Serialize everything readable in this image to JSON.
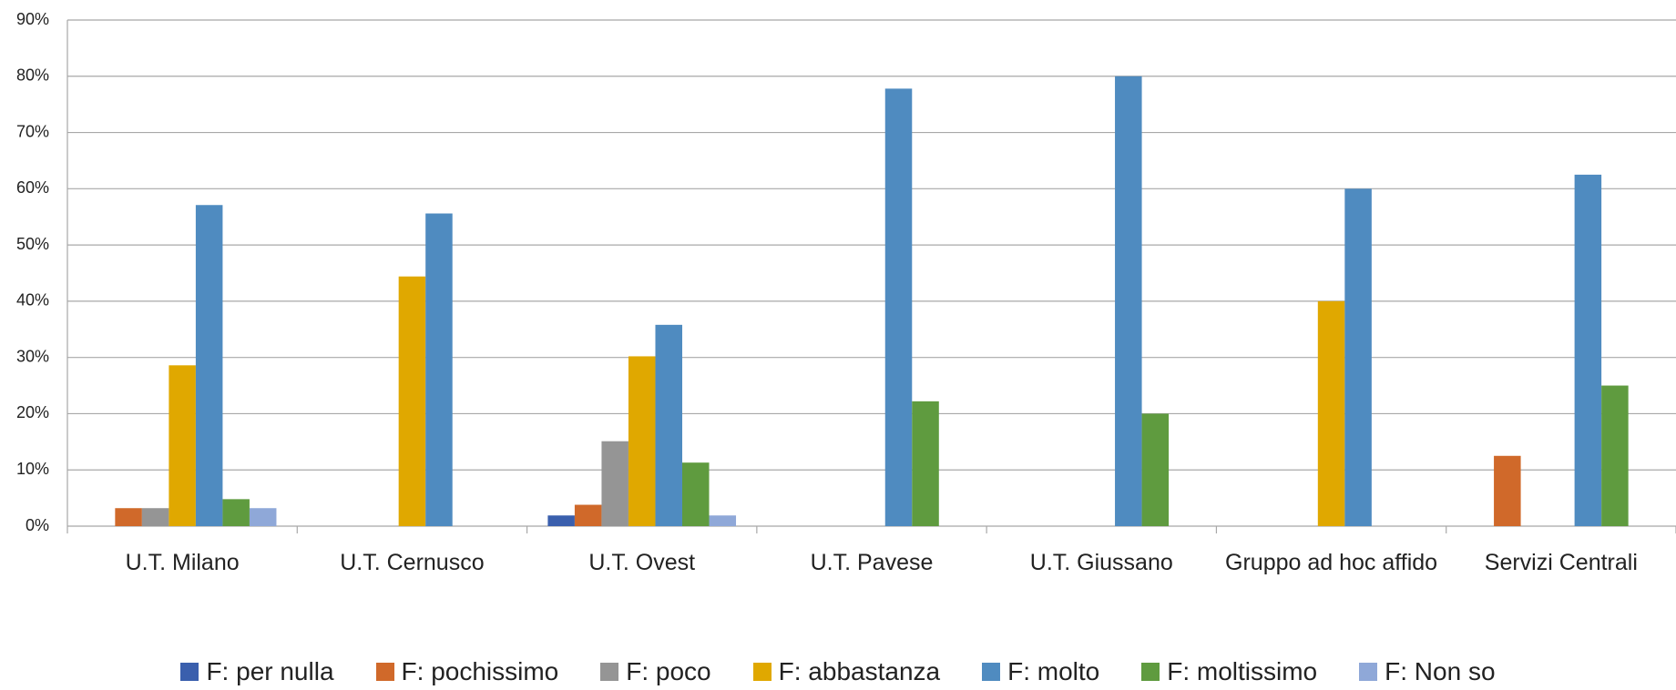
{
  "chart_data": {
    "type": "bar",
    "categories": [
      "U.T. Milano",
      "U.T. Cernusco",
      "U.T. Ovest",
      "U.T. Pavese",
      "U.T. Giussano",
      "Gruppo ad hoc affido",
      "Servizi Centrali"
    ],
    "series": [
      {
        "name": "F: per nulla",
        "color": "#3a5fad",
        "values": [
          0,
          0,
          1.9,
          0,
          0,
          0,
          0
        ]
      },
      {
        "name": "F: pochissimo",
        "color": "#d0692a",
        "values": [
          3.2,
          0,
          3.8,
          0,
          0,
          0,
          12.5
        ]
      },
      {
        "name": "F: poco",
        "color": "#959595",
        "values": [
          3.2,
          0,
          15.1,
          0,
          0,
          0,
          0
        ]
      },
      {
        "name": "F: abbastanza",
        "color": "#e0a800",
        "values": [
          28.6,
          44.4,
          30.2,
          0,
          0,
          40,
          0
        ]
      },
      {
        "name": "F: molto",
        "color": "#4f8bc0",
        "values": [
          57.1,
          55.6,
          35.8,
          77.8,
          80,
          60,
          62.5
        ]
      },
      {
        "name": "F: moltissimo",
        "color": "#5f9b3f",
        "values": [
          4.8,
          0,
          11.3,
          22.2,
          20,
          0,
          25
        ]
      },
      {
        "name": "F: Non so",
        "color": "#8fa8d8",
        "values": [
          3.2,
          0,
          1.9,
          0,
          0,
          0,
          0
        ]
      }
    ],
    "ylim": [
      0,
      90
    ],
    "yticks": [
      {
        "value": 0,
        "label": "0%"
      },
      {
        "value": 10,
        "label": "10%"
      },
      {
        "value": 20,
        "label": "20%"
      },
      {
        "value": 30,
        "label": "30%"
      },
      {
        "value": 40,
        "label": "40%"
      },
      {
        "value": 50,
        "label": "50%"
      },
      {
        "value": 60,
        "label": "60%"
      },
      {
        "value": 70,
        "label": "70%"
      },
      {
        "value": 80,
        "label": "80%"
      },
      {
        "value": 90,
        "label": "90%"
      }
    ],
    "grid": true,
    "legend": "bottom"
  }
}
